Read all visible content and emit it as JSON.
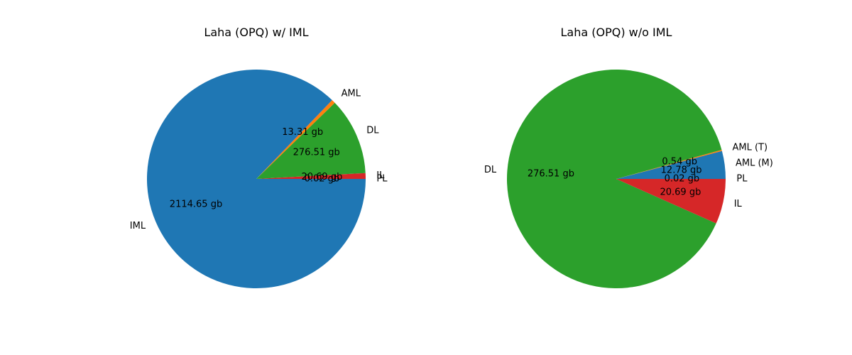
{
  "chart_data": [
    {
      "type": "pie",
      "title": "Laha (OPQ) w/ IML",
      "start_angle_deg": 0,
      "direction": "counterclockwise",
      "slices": [
        {
          "label": "PL",
          "value": 0.02,
          "value_label": "0.02 gb",
          "color": "#1f77b4"
        },
        {
          "label": "IL",
          "value": 20.69,
          "value_label": "20.69 gb",
          "color": "#d62728"
        },
        {
          "label": "DL",
          "value": 276.51,
          "value_label": "276.51 gb",
          "color": "#2ca02c"
        },
        {
          "label": "AML",
          "value": 13.31,
          "value_label": "13.31 gb",
          "color": "#ff7f0e"
        },
        {
          "label": "IML",
          "value": 2114.65,
          "value_label": "2114.65 gb",
          "color": "#1f77b4"
        }
      ]
    },
    {
      "type": "pie",
      "title": "Laha (OPQ) w/o IML",
      "start_angle_deg": 0,
      "direction": "counterclockwise",
      "slices": [
        {
          "label": "AML (M)",
          "value": 12.78,
          "value_label": "12.78 gb",
          "color": "#1f77b4"
        },
        {
          "label": "AML (T)",
          "value": 0.54,
          "value_label": "0.54 gb",
          "color": "#ff7f0e"
        },
        {
          "label": "DL",
          "value": 276.51,
          "value_label": "276.51 gb",
          "color": "#2ca02c"
        },
        {
          "label": "IL",
          "value": 20.69,
          "value_label": "20.69 gb",
          "color": "#d62728"
        },
        {
          "label": "PL",
          "value": 0.02,
          "value_label": "0.02 gb",
          "color": "#1f77b4"
        }
      ]
    }
  ]
}
